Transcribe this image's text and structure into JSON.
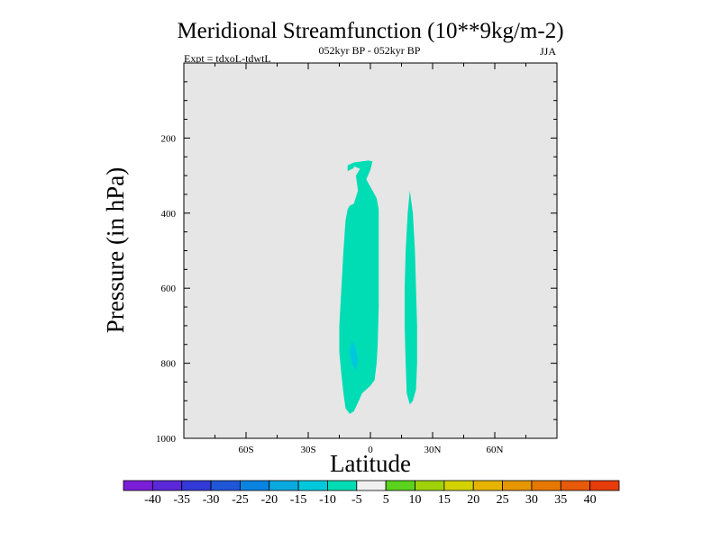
{
  "chart_data": {
    "type": "contour",
    "title": "Meridional Streamfunction (10**9kg/m-2)",
    "subtitle_center": "052kyr BP - 052kyr BP",
    "subtitle_left": "Expt = tdxoL-tdwtL",
    "subtitle_right": "JJA",
    "xlabel": "Latitude",
    "ylabel": "Pressure (in hPa)",
    "xlim": [
      -90,
      90
    ],
    "ylim": [
      1000,
      0
    ],
    "xticks": [
      {
        "value": -60,
        "label": "60S"
      },
      {
        "value": -30,
        "label": "30S"
      },
      {
        "value": 0,
        "label": "0"
      },
      {
        "value": 30,
        "label": "30N"
      },
      {
        "value": 60,
        "label": "60N"
      }
    ],
    "yticks": [
      200,
      400,
      600,
      800,
      1000
    ],
    "background_color": "#e6e6e6",
    "contour_regions": [
      {
        "level_range": [
          -10,
          -5
        ],
        "color": "#00dcb4",
        "polygon": [
          [
            -8,
            265
          ],
          [
            -1,
            260
          ],
          [
            1,
            262
          ],
          [
            0,
            285
          ],
          [
            -2,
            310
          ],
          [
            0,
            330
          ],
          [
            3,
            360
          ],
          [
            4,
            390
          ],
          [
            4,
            450
          ],
          [
            4,
            550
          ],
          [
            4,
            650
          ],
          [
            3.5,
            750
          ],
          [
            3,
            800
          ],
          [
            2,
            845
          ],
          [
            0,
            860
          ],
          [
            -4,
            880
          ],
          [
            -6,
            905
          ],
          [
            -8,
            928
          ],
          [
            -10,
            935
          ],
          [
            -12,
            920
          ],
          [
            -13,
            880
          ],
          [
            -14,
            830
          ],
          [
            -15,
            770
          ],
          [
            -15,
            700
          ],
          [
            -14,
            600
          ],
          [
            -13,
            500
          ],
          [
            -12,
            420
          ],
          [
            -11,
            390
          ],
          [
            -10,
            380
          ],
          [
            -8,
            375
          ],
          [
            -6,
            340
          ],
          [
            -7,
            300
          ],
          [
            -5,
            282
          ],
          [
            -8,
            275
          ]
        ]
      },
      {
        "level_range": [
          -10,
          -5
        ],
        "color": "#00dcb4",
        "polygon": [
          [
            -11,
            273
          ],
          [
            -8,
            265
          ],
          [
            -8,
            280
          ],
          [
            -11,
            288
          ]
        ]
      },
      {
        "level_range": [
          -10,
          -5
        ],
        "color": "#00dcb4",
        "polygon": [
          [
            19,
            340
          ],
          [
            20.5,
            400
          ],
          [
            21.5,
            500
          ],
          [
            22,
            600
          ],
          [
            22.5,
            700
          ],
          [
            22.5,
            800
          ],
          [
            22,
            870
          ],
          [
            20.5,
            900
          ],
          [
            19,
            910
          ],
          [
            17.5,
            880
          ],
          [
            17,
            800
          ],
          [
            16.5,
            700
          ],
          [
            16.5,
            600
          ],
          [
            17,
            500
          ],
          [
            18,
            400
          ]
        ]
      },
      {
        "level_range": [
          -15,
          -10
        ],
        "color": "#00c8dc",
        "polygon": [
          [
            -7,
            760
          ],
          [
            -6,
            790
          ],
          [
            -7,
            820
          ],
          [
            -9,
            800
          ],
          [
            -10,
            770
          ],
          [
            -9,
            740
          ]
        ]
      }
    ],
    "colorbar": {
      "labels": [
        "-40",
        "-35",
        "-30",
        "-25",
        "-20",
        "-15",
        "-10",
        "-5",
        "5",
        "10",
        "15",
        "20",
        "25",
        "30",
        "35",
        "40"
      ],
      "colors": [
        "#7c1dd8",
        "#5a28d8",
        "#3239d6",
        "#2056d8",
        "#0a82e0",
        "#0aaae0",
        "#00c8dc",
        "#00dcb4",
        "#f0f0f0",
        "#5ad21e",
        "#a0d20a",
        "#d2d200",
        "#e6b400",
        "#e69600",
        "#e67800",
        "#e65a0a",
        "#e63c0a"
      ]
    }
  }
}
